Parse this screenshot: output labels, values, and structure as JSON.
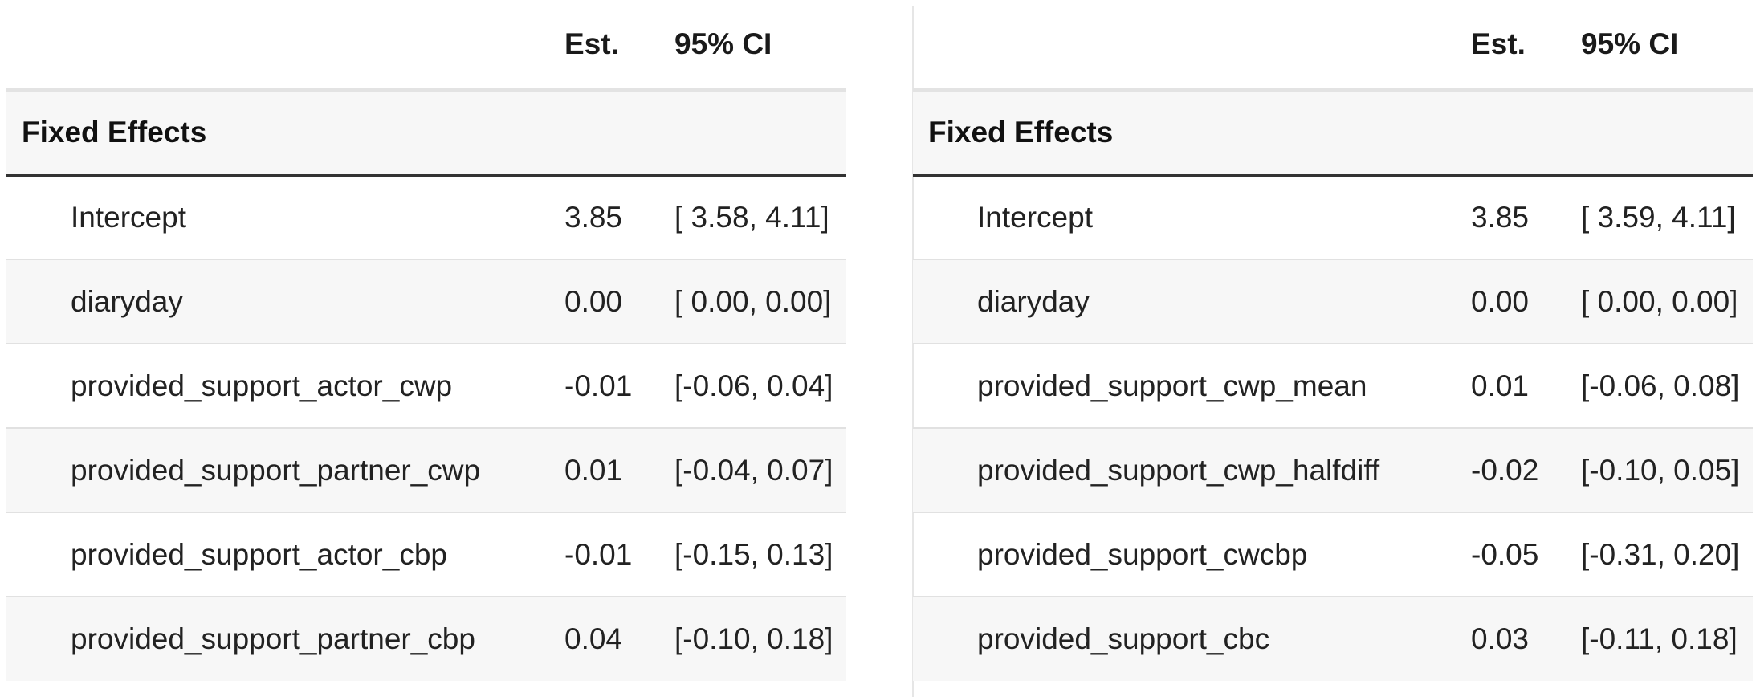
{
  "tables": [
    {
      "header": {
        "term": "",
        "est": "Est.",
        "ci": "95% CI"
      },
      "section": "Fixed Effects",
      "rows": [
        {
          "term": "Intercept",
          "est": "3.85",
          "ci": "[ 3.58, 4.11]"
        },
        {
          "term": "diaryday",
          "est": "0.00",
          "ci": "[ 0.00, 0.00]"
        },
        {
          "term": "provided_support_actor_cwp",
          "est": "-0.01",
          "ci": "[-0.06, 0.04]"
        },
        {
          "term": "provided_support_partner_cwp",
          "est": "0.01",
          "ci": "[-0.04, 0.07]"
        },
        {
          "term": "provided_support_actor_cbp",
          "est": "-0.01",
          "ci": "[-0.15, 0.13]"
        },
        {
          "term": "provided_support_partner_cbp",
          "est": "0.04",
          "ci": "[-0.10, 0.18]"
        }
      ]
    },
    {
      "header": {
        "term": "",
        "est": "Est.",
        "ci": "95% CI"
      },
      "section": "Fixed Effects",
      "rows": [
        {
          "term": "Intercept",
          "est": "3.85",
          "ci": "[ 3.59, 4.11]"
        },
        {
          "term": "diaryday",
          "est": "0.00",
          "ci": "[ 0.00, 0.00]"
        },
        {
          "term": "provided_support_cwp_mean",
          "est": "0.01",
          "ci": "[-0.06, 0.08]"
        },
        {
          "term": "provided_support_cwp_halfdiff",
          "est": "-0.02",
          "ci": "[-0.10, 0.05]"
        },
        {
          "term": "provided_support_cwcbp",
          "est": "-0.05",
          "ci": "[-0.31, 0.20]"
        },
        {
          "term": "provided_support_cbc",
          "est": "0.03",
          "ci": "[-0.11, 0.18]"
        }
      ]
    }
  ]
}
